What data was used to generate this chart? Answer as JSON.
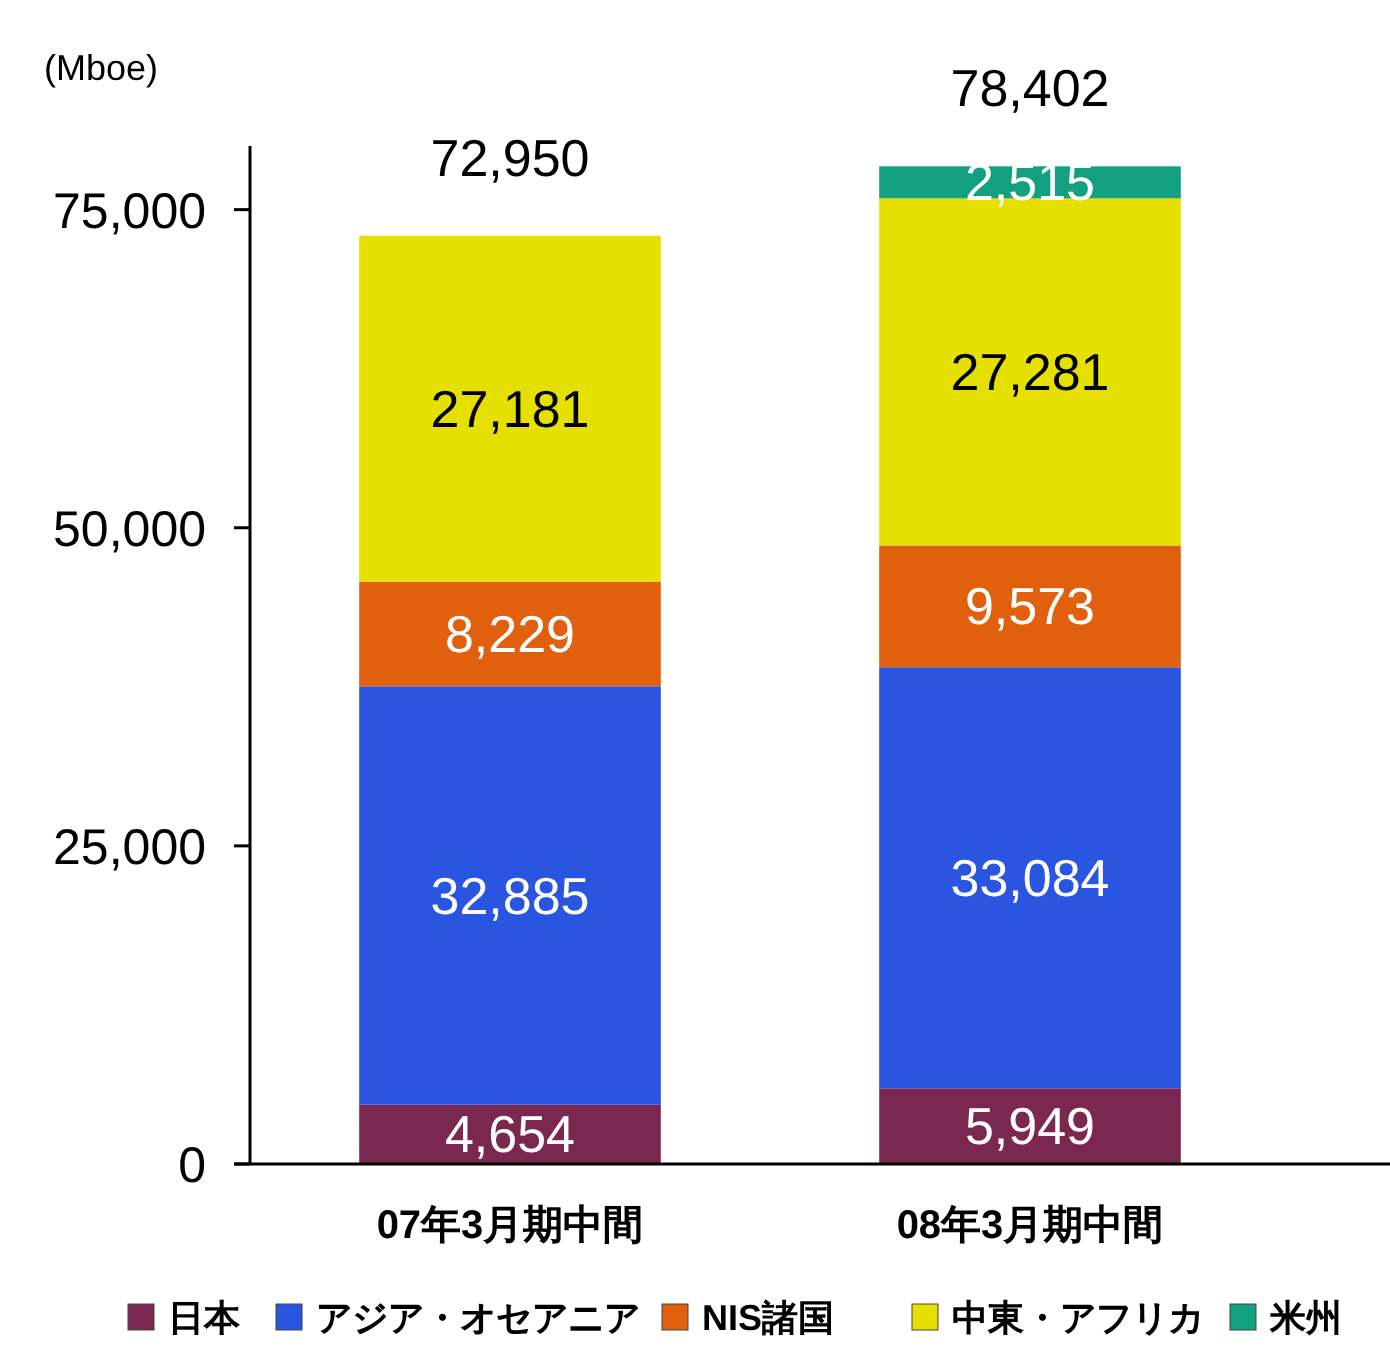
{
  "chart_data": {
    "type": "bar",
    "stacked": true,
    "ylabel": "(Mboe)",
    "categories": [
      "07年3月期中間",
      "08年3月期中間"
    ],
    "series": [
      {
        "name": "日本",
        "color": "#7a2850",
        "values": [
          4654,
          5949
        ],
        "value_labels": [
          "4,654",
          "5,949"
        ]
      },
      {
        "name": "アジア・オセアニア",
        "color": "#2a55e0",
        "values": [
          32885,
          33084
        ],
        "value_labels": [
          "32,885",
          "33,084"
        ]
      },
      {
        "name": "NIS諸国",
        "color": "#e0600e",
        "values": [
          8229,
          9573
        ],
        "value_labels": [
          "8,229",
          "9,573"
        ]
      },
      {
        "name": "中東・アフリカ",
        "color": "#e6e000",
        "values": [
          27181,
          27281
        ],
        "value_labels": [
          "27,181",
          "27,281"
        ]
      },
      {
        "name": "米州",
        "color": "#12a080",
        "values": [
          null,
          2515
        ],
        "value_labels": [
          null,
          "2,515"
        ]
      }
    ],
    "ylim": [
      0,
      80000
    ],
    "yticks": [
      0,
      {
        "value": 25000,
        "label": "25,000"
      },
      {
        "value": 50000,
        "label": "50,000"
      },
      {
        "value": 75000,
        "label": "75,000"
      }
    ],
    "totals": [
      "72,950",
      "78,402"
    ],
    "legend": "bottom"
  }
}
